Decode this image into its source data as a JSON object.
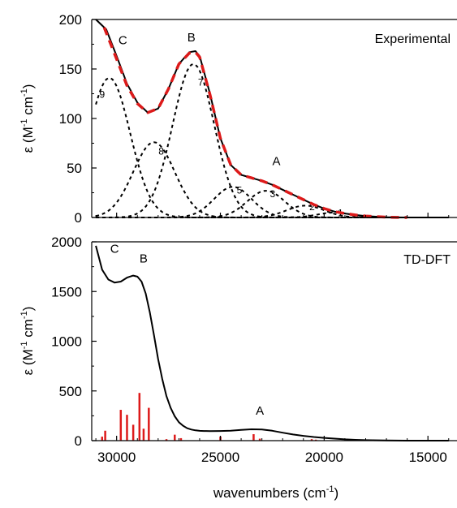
{
  "chart_data": [
    {
      "panel": "top",
      "type": "line",
      "panel_label": "Experimental",
      "ylabel": "ε (M-1 cm-1)",
      "ylim": [
        0,
        200
      ],
      "y_ticks": [
        0,
        50,
        100,
        150,
        200
      ],
      "xlim": [
        31200,
        13600
      ],
      "x_ticks": [
        30000,
        25000,
        20000,
        15000
      ],
      "grid": false,
      "x_reversed": true,
      "series": [
        {
          "style": "solid-black",
          "x": [
            31000,
            30500,
            30000,
            29500,
            29000,
            28500,
            28000,
            27500,
            27000,
            26500,
            26200,
            26000,
            25500,
            25000,
            24500,
            24000,
            23500,
            23000,
            22500,
            22000,
            21500,
            21000,
            20500,
            20000,
            19500,
            19000,
            18500,
            18000,
            17500,
            17000,
            16500,
            16000,
            15000,
            14000
          ],
          "values": [
            200,
            190,
            163,
            135,
            116,
            106,
            110,
            130,
            155,
            167,
            168,
            163,
            125,
            80,
            53,
            43,
            40,
            37,
            33,
            28,
            23,
            18,
            13,
            9,
            6,
            4,
            2.5,
            1.5,
            0.8,
            0.3,
            0.1,
            0,
            0,
            0
          ]
        },
        {
          "style": "dashed-red",
          "x": [
            30600,
            30000,
            29500,
            29000,
            28500,
            28000,
            27500,
            27000,
            26500,
            26200,
            26000,
            25500,
            25000,
            24500,
            24000,
            23500,
            23000,
            22500,
            22000,
            21500,
            21000,
            20500,
            20000,
            19500,
            19000,
            18500,
            18000,
            17500,
            17000,
            16500,
            16000
          ],
          "values": [
            192,
            160,
            133,
            115,
            106,
            110,
            130,
            155,
            166,
            167,
            162,
            124,
            80,
            53,
            43,
            40,
            37,
            33,
            28,
            23,
            18,
            13,
            9,
            6,
            4,
            2.5,
            1.5,
            0.8,
            0.3,
            0.1,
            0
          ]
        }
      ],
      "gaussians": [
        {
          "label": "9",
          "center": 30350,
          "amplitude": 141,
          "width": 1000
        },
        {
          "label": "8",
          "center": 28200,
          "amplitude": 76,
          "width": 1000
        },
        {
          "label": "7",
          "center": 26300,
          "amplitude": 155,
          "width": 1000
        },
        {
          "label": "5",
          "center": 24400,
          "amplitude": 31,
          "width": 900
        },
        {
          "label": "3",
          "center": 22800,
          "amplitude": 27,
          "width": 900
        },
        {
          "label": "2",
          "center": 20900,
          "amplitude": 12,
          "width": 900
        },
        {
          "label": "1",
          "center": 19500,
          "amplitude": 5,
          "width": 800
        }
      ],
      "band_labels": [
        {
          "text": "C",
          "x": 29700,
          "y": 175
        },
        {
          "text": "B",
          "x": 26400,
          "y": 178
        },
        {
          "text": "A",
          "x": 22300,
          "y": 53
        }
      ]
    },
    {
      "panel": "bottom",
      "type": "line",
      "panel_label": "TD-DFT",
      "ylabel": "ε (M-1 cm-1)",
      "xlabel": "wavenumbers (cm-1)",
      "ylim": [
        0,
        2000
      ],
      "y_ticks": [
        0,
        500,
        1000,
        1500,
        2000
      ],
      "xlim": [
        31200,
        13600
      ],
      "x_ticks": [
        30000,
        25000,
        20000,
        15000
      ],
      "x_tick_labels": [
        "30000",
        "25000",
        "20000",
        "15000"
      ],
      "grid": false,
      "x_reversed": true,
      "series": [
        {
          "style": "solid-black",
          "x": [
            31000,
            30700,
            30400,
            30100,
            29800,
            29500,
            29200,
            29000,
            28800,
            28600,
            28400,
            28200,
            28000,
            27800,
            27600,
            27400,
            27200,
            27000,
            26800,
            26600,
            26400,
            26200,
            26000,
            25800,
            25500,
            25000,
            24500,
            24000,
            23500,
            23000,
            22500,
            22000,
            21500,
            21000,
            20500,
            20000,
            19500,
            19000,
            18500,
            18000,
            17000,
            16000,
            15000,
            14000
          ],
          "values": [
            1960,
            1720,
            1620,
            1590,
            1600,
            1640,
            1660,
            1650,
            1600,
            1480,
            1290,
            1060,
            820,
            620,
            450,
            330,
            245,
            185,
            150,
            125,
            112,
            104,
            99,
            97,
            96,
            97,
            100,
            108,
            114,
            113,
            100,
            80,
            62,
            48,
            37,
            28,
            20,
            13,
            8,
            5,
            2,
            0,
            0,
            0
          ]
        }
      ],
      "sticks": {
        "x": [
          30700,
          30550,
          29800,
          29500,
          29200,
          28900,
          28700,
          28450,
          27600,
          27200,
          26900,
          25000,
          23400,
          23100,
          20600,
          20400
        ],
        "values": [
          40,
          100,
          310,
          260,
          160,
          480,
          120,
          330,
          15,
          60,
          25,
          40,
          65,
          20,
          15,
          10
        ]
      },
      "band_labels": [
        {
          "text": "C",
          "x": 30100,
          "y": 1890
        },
        {
          "text": "B",
          "x": 28700,
          "y": 1790
        },
        {
          "text": "A",
          "x": 23100,
          "y": 260
        }
      ]
    }
  ]
}
